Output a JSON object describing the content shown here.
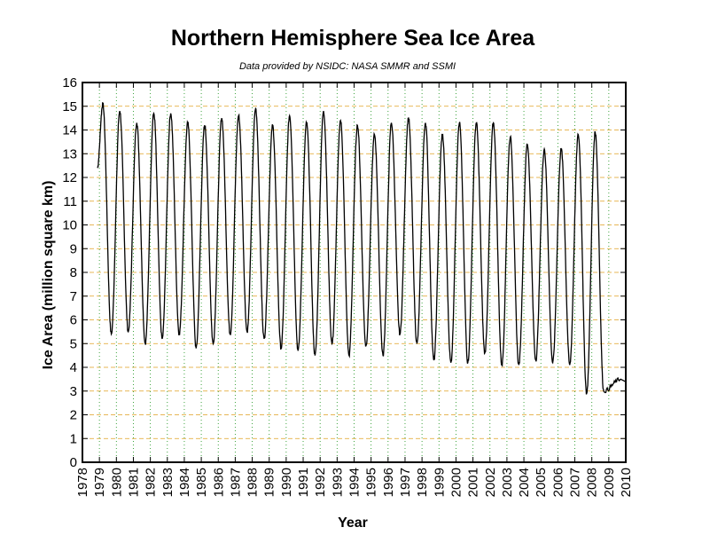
{
  "chart_data": {
    "type": "line",
    "title": "Northern Hemisphere Sea Ice Area",
    "subtitle": "Data provided by NSIDC: NASA SMMR and SSMI",
    "xlabel": "Year",
    "ylabel": "Ice Area (million square km)",
    "xlim": [
      1978,
      2010
    ],
    "ylim": [
      0,
      16
    ],
    "xticks": [
      "1978",
      "1979",
      "1980",
      "1981",
      "1982",
      "1983",
      "1984",
      "1985",
      "1986",
      "1987",
      "1988",
      "1989",
      "1990",
      "1991",
      "1992",
      "1993",
      "1994",
      "1995",
      "1996",
      "1997",
      "1998",
      "1999",
      "2000",
      "2001",
      "2002",
      "2003",
      "2004",
      "2005",
      "2006",
      "2007",
      "2008",
      "2009",
      "2010"
    ],
    "yticks": [
      "0",
      "1",
      "2",
      "3",
      "4",
      "5",
      "6",
      "7",
      "8",
      "9",
      "10",
      "11",
      "12",
      "13",
      "14",
      "15",
      "16"
    ],
    "grid": true,
    "legend": "none",
    "series": [
      {
        "color": "#000000",
        "seasonal_cycle": {
          "start_year": 1979,
          "annual_max": [
            15.1,
            14.8,
            14.3,
            14.7,
            14.7,
            14.3,
            14.2,
            14.5,
            14.6,
            14.9,
            14.2,
            14.6,
            14.3,
            14.8,
            14.4,
            14.2,
            13.8,
            14.3,
            14.5,
            14.3,
            13.8,
            14.3,
            14.3,
            14.3,
            13.7,
            13.4,
            13.2,
            13.2,
            13.8,
            13.9,
            null
          ],
          "annual_min": [
            5.4,
            5.5,
            5.0,
            5.2,
            5.4,
            4.8,
            5.0,
            5.4,
            5.5,
            5.2,
            4.8,
            4.7,
            4.5,
            5.0,
            4.5,
            4.9,
            4.5,
            5.4,
            5.0,
            4.3,
            4.2,
            4.2,
            4.6,
            4.1,
            4.1,
            4.3,
            4.2,
            4.1,
            2.9,
            3.0,
            3.5
          ]
        }
      }
    ]
  }
}
